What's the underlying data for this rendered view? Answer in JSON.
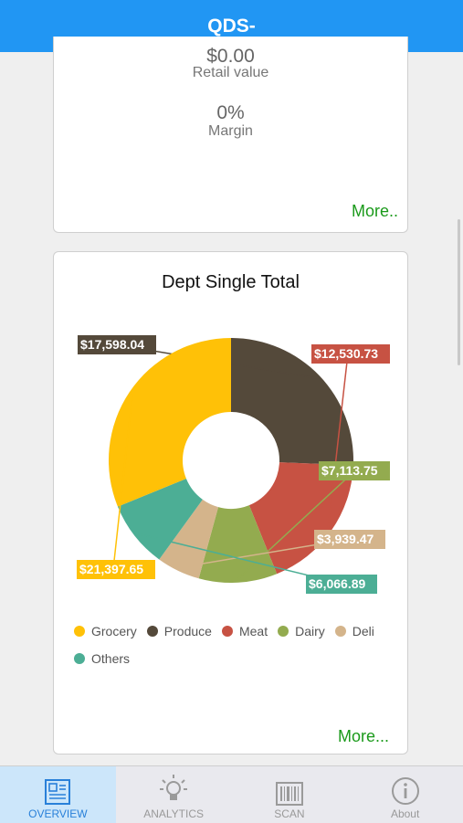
{
  "nav": {
    "title": "QDS-"
  },
  "summary_card": {
    "retail_value": "$0.00",
    "retail_label": "Retail value",
    "margin_value": "0%",
    "margin_label": "Margin",
    "more_label": "More.."
  },
  "dept_card": {
    "title": "Dept Single Total",
    "more_label": "More..."
  },
  "chart_data": {
    "type": "pie",
    "title": "Dept Single Total",
    "donut": true,
    "categories": [
      "Grocery",
      "Produce",
      "Meat",
      "Dairy",
      "Deli",
      "Others"
    ],
    "values": [
      21397.65,
      17598.04,
      12530.73,
      7113.75,
      3939.47,
      6066.89
    ],
    "value_labels": [
      "$21,397.65",
      "$17,598.04",
      "$12,530.73",
      "$7,113.75",
      "$3,939.47",
      "$6,066.89"
    ],
    "slice_order": [
      "Produce",
      "Meat",
      "Dairy",
      "Deli",
      "Others",
      "Grocery"
    ],
    "colors": [
      "#ffc107",
      "#54493a",
      "#c75243",
      "#93ab4f",
      "#d4b48b",
      "#4cae95"
    ],
    "legend": "bottom-left"
  },
  "tabs": [
    {
      "label": "OVERVIEW",
      "icon": "overview-icon",
      "active": true
    },
    {
      "label": "ANALYTICS",
      "icon": "lightbulb-icon",
      "active": false
    },
    {
      "label": "SCAN",
      "icon": "barcode-icon",
      "active": false
    },
    {
      "label": "About",
      "icon": "info-icon",
      "active": false
    }
  ]
}
